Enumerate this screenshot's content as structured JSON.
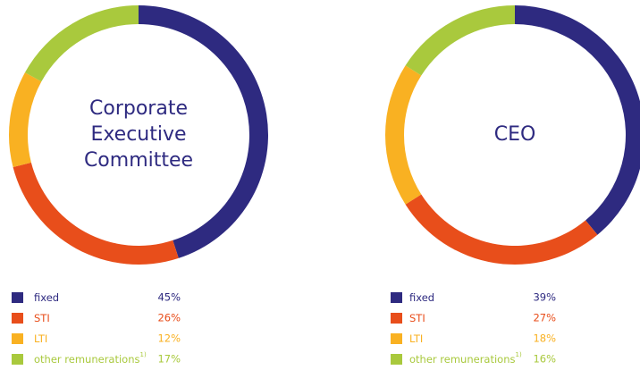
{
  "chart_data": [
    {
      "type": "donut",
      "title_lines": [
        "Corporate",
        "Executive",
        "Committee"
      ],
      "categories": [
        "fixed",
        "STI",
        "LTI",
        "other remunerations"
      ],
      "category_notes": [
        null,
        null,
        null,
        "1)"
      ],
      "values": [
        45,
        26,
        12,
        17
      ],
      "value_labels": [
        "45%",
        "26%",
        "12%",
        "17%"
      ],
      "colors": [
        "#2e2a80",
        "#e84e1b",
        "#f9b122",
        "#a9c93d"
      ]
    },
    {
      "type": "donut",
      "title_lines": [
        "CEO"
      ],
      "categories": [
        "fixed",
        "STI",
        "LTI",
        "other remunerations"
      ],
      "category_notes": [
        null,
        null,
        null,
        "1)"
      ],
      "values": [
        39,
        27,
        18,
        16
      ],
      "value_labels": [
        "39%",
        "27%",
        "18%",
        "16%"
      ],
      "colors": [
        "#2e2a80",
        "#e84e1b",
        "#f9b122",
        "#a9c93d"
      ]
    }
  ]
}
